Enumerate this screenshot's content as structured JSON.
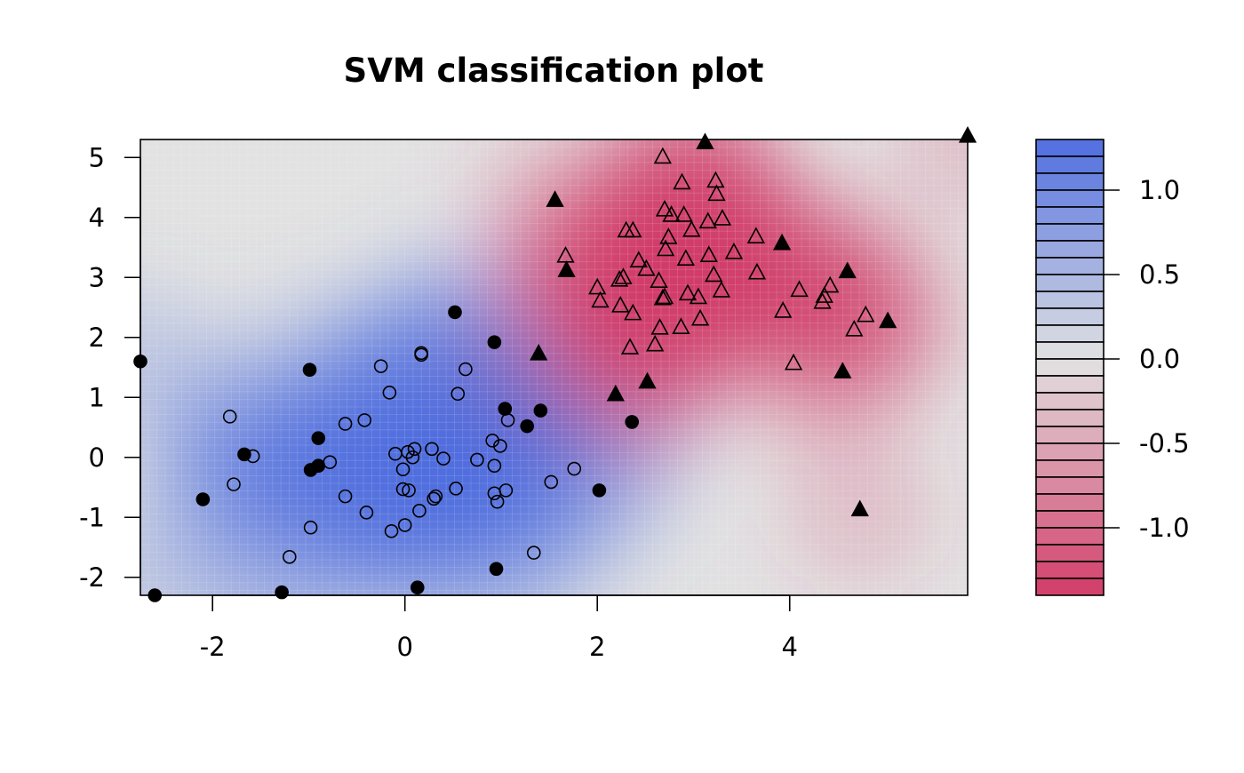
{
  "chart_data": {
    "type": "scatter",
    "title": "SVM classification plot",
    "xlim": [
      -2.75,
      5.85
    ],
    "ylim": [
      -2.3,
      5.3
    ],
    "x_ticks": [
      {
        "value": -2,
        "label": "-2"
      },
      {
        "value": 0,
        "label": "0"
      },
      {
        "value": 2,
        "label": "2"
      },
      {
        "value": 4,
        "label": "4"
      }
    ],
    "y_ticks": [
      {
        "value": -2,
        "label": "-2"
      },
      {
        "value": -1,
        "label": "-1"
      },
      {
        "value": 0,
        "label": "0"
      },
      {
        "value": 1,
        "label": "1"
      },
      {
        "value": 2,
        "label": "2"
      },
      {
        "value": 3,
        "label": "3"
      },
      {
        "value": 4,
        "label": "4"
      },
      {
        "value": 5,
        "label": "5"
      }
    ],
    "decision_surface": {
      "levels": [
        1.3,
        1.2,
        1.1,
        1.0,
        0.9,
        0.8,
        0.7,
        0.6,
        0.5,
        0.4,
        0.3,
        0.2,
        0.1,
        0.0,
        -0.1,
        -0.2,
        -0.3,
        -0.4,
        -0.5,
        -0.6,
        -0.7,
        -0.8,
        -0.9,
        -1.0,
        -1.1,
        -1.2,
        -1.3,
        -1.4
      ],
      "colorbar_ticks": [
        {
          "value": 1.0,
          "label": "1.0"
        },
        {
          "value": 0.5,
          "label": "0.5"
        },
        {
          "value": 0.0,
          "label": "0.0"
        },
        {
          "value": -0.5,
          "label": "-0.5"
        },
        {
          "value": -1.0,
          "label": "-1.0"
        }
      ],
      "colors": {
        "positive": "#4f6ee0",
        "neutral": "#e2e2e2",
        "negative": "#d23c68"
      }
    },
    "series": [
      {
        "class": "circle-class",
        "marker": "circle",
        "role": "data point",
        "points": [
          [
            -1.82,
            0.68
          ],
          [
            -1.78,
            -0.45
          ],
          [
            -1.58,
            0.02
          ],
          [
            -1.2,
            -1.66
          ],
          [
            -0.98,
            -1.17
          ],
          [
            -0.78,
            -0.08
          ],
          [
            -0.62,
            -0.65
          ],
          [
            -0.62,
            0.56
          ],
          [
            -0.42,
            0.62
          ],
          [
            -0.4,
            -0.92
          ],
          [
            -0.25,
            1.52
          ],
          [
            -0.16,
            1.08
          ],
          [
            -0.14,
            -1.23
          ],
          [
            -0.1,
            0.06
          ],
          [
            -0.02,
            -0.2
          ],
          [
            -0.02,
            -0.53
          ],
          [
            0.0,
            -1.13
          ],
          [
            0.03,
            0.09
          ],
          [
            0.04,
            -0.55
          ],
          [
            0.08,
            0.0
          ],
          [
            0.1,
            0.14
          ],
          [
            0.15,
            -0.89
          ],
          [
            0.17,
            1.74
          ],
          [
            0.17,
            1.71
          ],
          [
            0.28,
            0.14
          ],
          [
            0.3,
            -0.69
          ],
          [
            0.32,
            -0.65
          ],
          [
            0.4,
            -0.02
          ],
          [
            0.53,
            -0.52
          ],
          [
            0.55,
            1.06
          ],
          [
            0.63,
            1.47
          ],
          [
            0.75,
            -0.04
          ],
          [
            0.91,
            0.28
          ],
          [
            0.93,
            -0.6
          ],
          [
            0.93,
            -0.14
          ],
          [
            0.96,
            -0.74
          ],
          [
            0.99,
            0.19
          ],
          [
            1.05,
            -0.55
          ],
          [
            1.07,
            0.62
          ],
          [
            1.34,
            -1.59
          ],
          [
            1.52,
            -0.41
          ],
          [
            1.76,
            -0.19
          ]
        ]
      },
      {
        "class": "circle-class",
        "marker": "circle",
        "role": "support vector",
        "points": [
          [
            -2.75,
            1.6
          ],
          [
            -2.1,
            -0.7
          ],
          [
            -2.6,
            -2.3
          ],
          [
            -1.67,
            0.05
          ],
          [
            -1.28,
            -2.25
          ],
          [
            -0.98,
            -0.21
          ],
          [
            -0.99,
            1.46
          ],
          [
            -0.9,
            -0.14
          ],
          [
            -0.9,
            0.32
          ],
          [
            0.13,
            -2.17
          ],
          [
            0.52,
            2.42
          ],
          [
            0.93,
            1.92
          ],
          [
            0.95,
            -1.86
          ],
          [
            1.04,
            0.81
          ],
          [
            1.27,
            0.52
          ],
          [
            1.41,
            0.78
          ],
          [
            2.02,
            -0.55
          ],
          [
            2.36,
            0.59
          ]
        ]
      },
      {
        "class": "triangle-class",
        "marker": "triangle",
        "role": "data point",
        "points": [
          [
            1.67,
            3.35
          ],
          [
            2.0,
            2.82
          ],
          [
            2.03,
            2.6
          ],
          [
            2.23,
            2.95
          ],
          [
            2.24,
            2.52
          ],
          [
            2.27,
            2.99
          ],
          [
            2.3,
            3.77
          ],
          [
            2.34,
            1.82
          ],
          [
            2.37,
            2.39
          ],
          [
            2.37,
            3.77
          ],
          [
            2.43,
            3.27
          ],
          [
            2.51,
            3.13
          ],
          [
            2.6,
            1.87
          ],
          [
            2.64,
            2.93
          ],
          [
            2.65,
            2.15
          ],
          [
            2.68,
            2.64
          ],
          [
            2.68,
            5.0
          ],
          [
            2.7,
            4.12
          ],
          [
            2.7,
            2.66
          ],
          [
            2.71,
            3.46
          ],
          [
            2.74,
            3.66
          ],
          [
            2.77,
            4.03
          ],
          [
            2.87,
            2.16
          ],
          [
            2.88,
            4.57
          ],
          [
            2.9,
            4.03
          ],
          [
            2.92,
            3.3
          ],
          [
            2.94,
            2.72
          ],
          [
            2.98,
            3.78
          ],
          [
            3.05,
            2.66
          ],
          [
            3.07,
            2.3
          ],
          [
            3.15,
            3.92
          ],
          [
            3.16,
            3.36
          ],
          [
            3.21,
            3.03
          ],
          [
            3.23,
            4.6
          ],
          [
            3.24,
            4.38
          ],
          [
            3.29,
            2.77
          ],
          [
            3.3,
            3.97
          ],
          [
            3.42,
            3.41
          ],
          [
            3.65,
            3.67
          ],
          [
            3.66,
            3.07
          ],
          [
            3.93,
            2.43
          ],
          [
            4.04,
            1.56
          ],
          [
            4.1,
            2.78
          ],
          [
            4.34,
            2.58
          ],
          [
            4.36,
            2.68
          ],
          [
            4.42,
            2.85
          ],
          [
            4.67,
            2.12
          ],
          [
            4.79,
            2.36
          ]
        ]
      },
      {
        "class": "triangle-class",
        "marker": "triangle",
        "role": "support vector",
        "points": [
          [
            1.39,
            1.72
          ],
          [
            1.56,
            4.28
          ],
          [
            1.68,
            3.11
          ],
          [
            2.19,
            1.04
          ],
          [
            2.52,
            1.25
          ],
          [
            3.12,
            5.24
          ],
          [
            3.92,
            3.56
          ],
          [
            4.55,
            1.42
          ],
          [
            4.6,
            3.09
          ],
          [
            4.73,
            -0.88
          ],
          [
            5.02,
            2.26
          ],
          [
            5.85,
            5.35
          ]
        ]
      }
    ]
  }
}
